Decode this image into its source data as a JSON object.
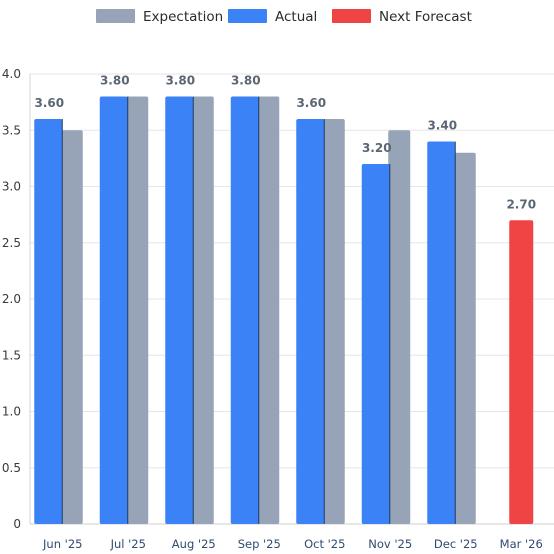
{
  "chart_data": {
    "type": "bar",
    "categories": [
      "Jun '25",
      "Jul '25",
      "Aug '25",
      "Sep '25",
      "Oct '25",
      "Nov '25",
      "Dec '25",
      "Mar '26"
    ],
    "series": [
      {
        "name": "Expectation",
        "color": "#97a3b6",
        "values": [
          3.5,
          3.8,
          3.8,
          3.8,
          3.6,
          3.5,
          3.3,
          null
        ]
      },
      {
        "name": "Actual",
        "color": "#3b82f6",
        "values": [
          3.6,
          3.8,
          3.8,
          3.8,
          3.6,
          3.2,
          3.4,
          null
        ]
      },
      {
        "name": "Next Forecast",
        "color": "#ef4444",
        "values": [
          null,
          null,
          null,
          null,
          null,
          null,
          null,
          2.7
        ]
      }
    ],
    "data_labels": [
      "3.60",
      "3.80",
      "3.80",
      "3.80",
      "3.60",
      "3.20",
      "3.40",
      "2.70"
    ],
    "y_ticks": [
      "0",
      "0.5",
      "1.0",
      "1.5",
      "2.0",
      "2.5",
      "3.0",
      "3.5",
      "4.0"
    ],
    "ylim": [
      0,
      4
    ],
    "grid": true,
    "legend_position": "top-center",
    "title": "",
    "xlabel": "",
    "ylabel": ""
  }
}
